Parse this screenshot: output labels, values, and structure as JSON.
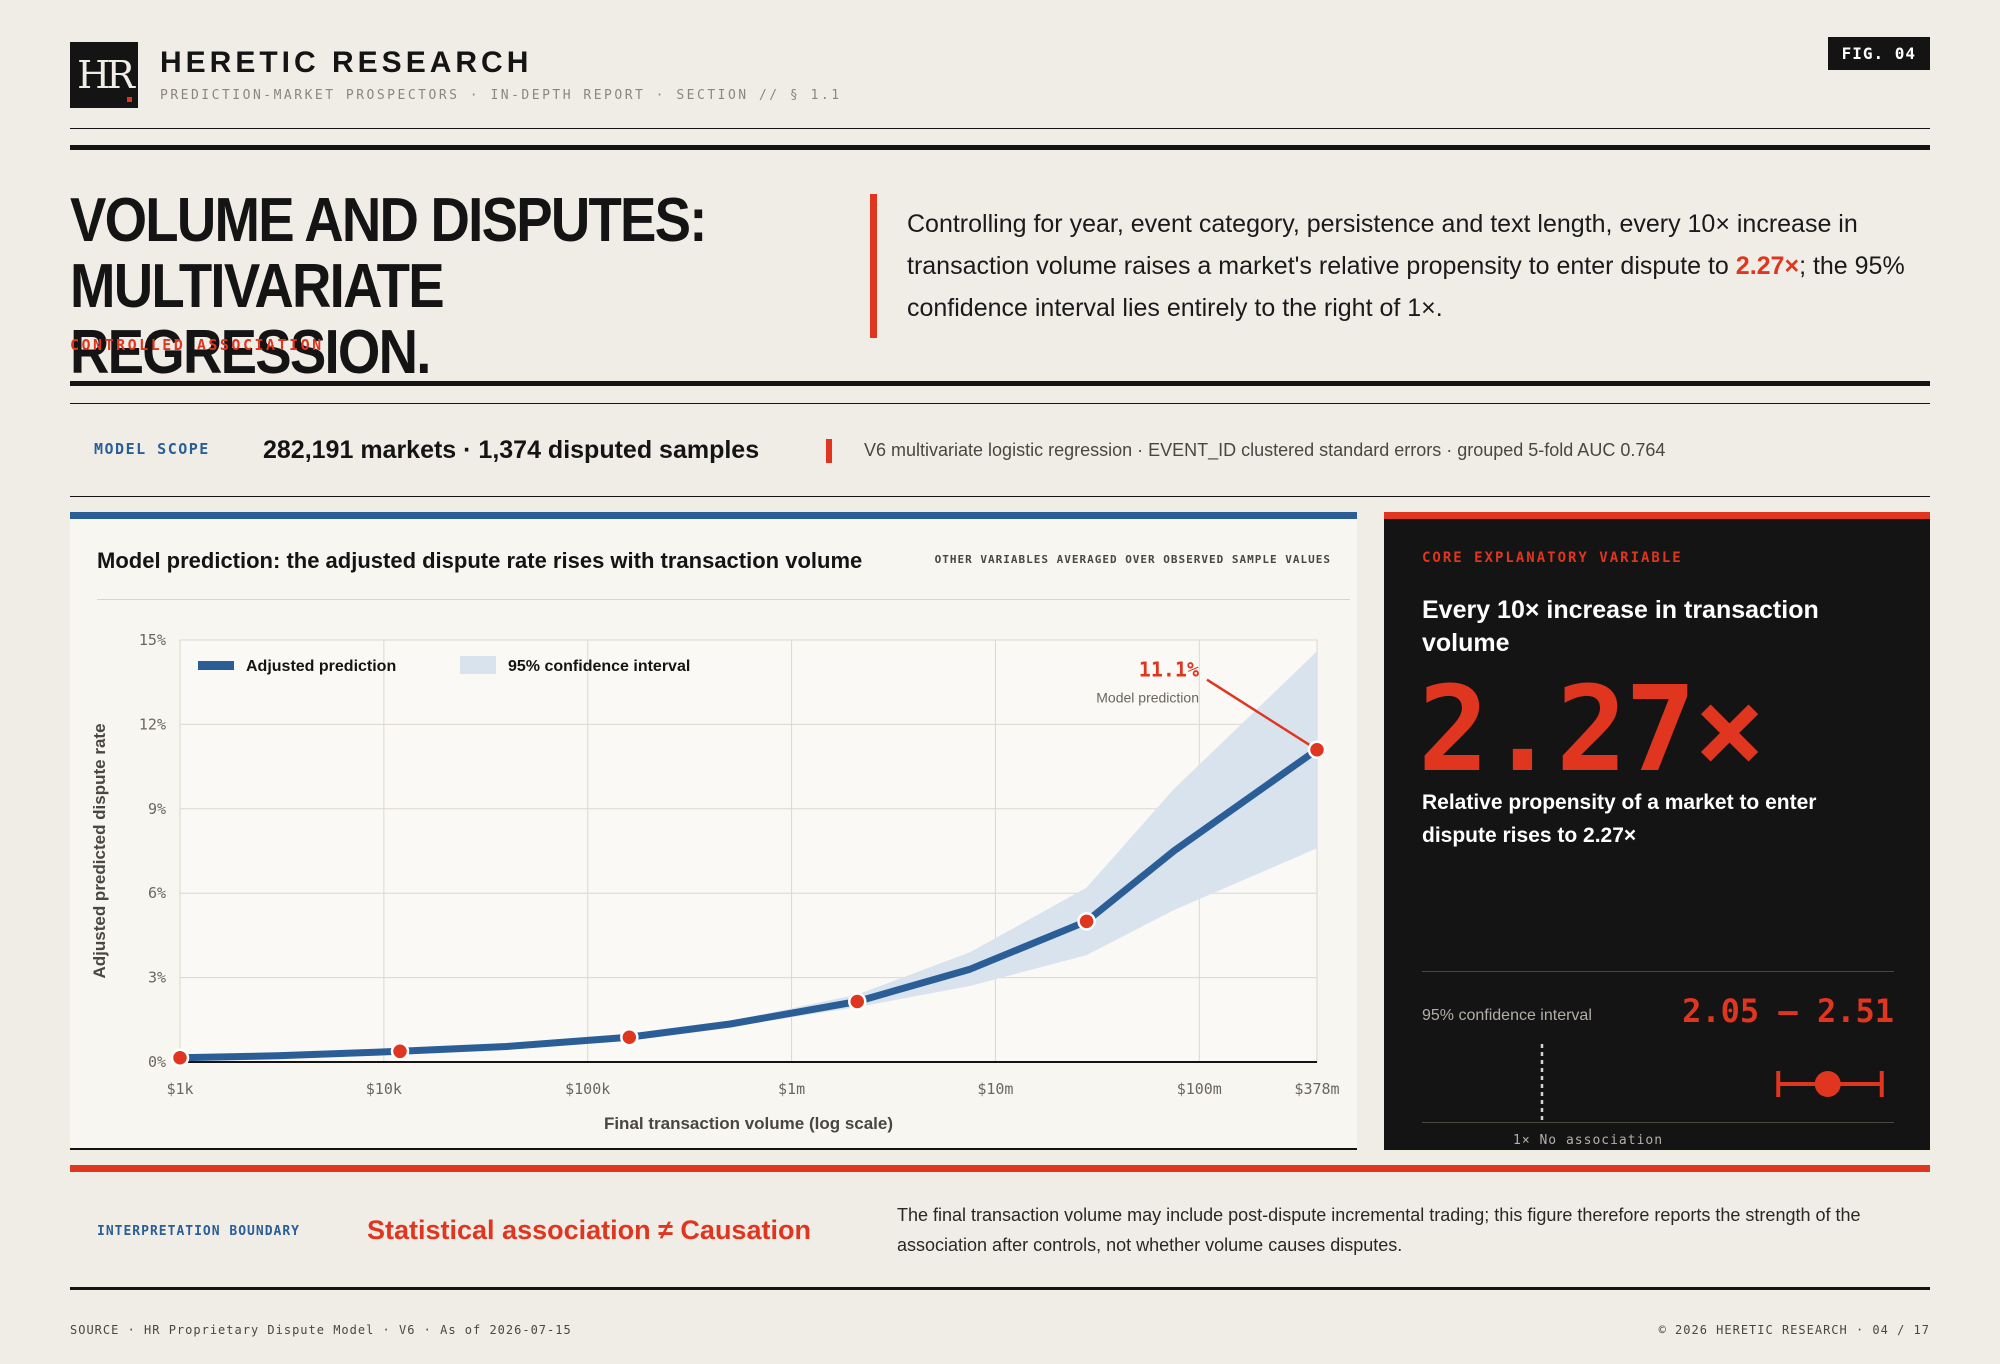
{
  "header": {
    "logo_text": "HR",
    "brand": "HERETIC RESEARCH",
    "subtitle": "PREDICTION-MARKET PROSPECTORS · IN-DEPTH REPORT · SECTION // § 1.1",
    "fig_label": "FIG. 04"
  },
  "title": {
    "line1": "VOLUME AND DISPUTES:",
    "line2": "MULTIVARIATE REGRESSION.",
    "kicker": "CONTROLLED ASSOCIATION"
  },
  "lead": {
    "before": "Controlling for year, event category, persistence and text length, every 10× increase in transaction volume raises a market's relative propensity to enter dispute to ",
    "highlight": "2.27×",
    "after": "; the 95% confidence interval lies entirely to the right of 1×."
  },
  "scope": {
    "label": "MODEL SCOPE",
    "value": "282,191 markets · 1,374 disputed samples",
    "description": "V6 multivariate logistic regression · EVENT_ID clustered standard errors · grouped 5-fold AUC 0.764"
  },
  "panel": {
    "title": "Model prediction: the adjusted dispute rate rises with transaction volume",
    "note": "OTHER VARIABLES AVERAGED OVER OBSERVED SAMPLE VALUES"
  },
  "chart_data": {
    "type": "line",
    "title": "Model prediction: the adjusted dispute rate rises with transaction volume",
    "xlabel": "Final transaction volume (log scale)",
    "ylabel": "Adjusted predicted dispute rate",
    "x_scale": "log",
    "xlim": [
      1000,
      378000000
    ],
    "ylim": [
      0,
      15
    ],
    "x_ticks": [
      {
        "value": 1000,
        "label": "$1k"
      },
      {
        "value": 10000,
        "label": "$10k"
      },
      {
        "value": 100000,
        "label": "$100k"
      },
      {
        "value": 1000000,
        "label": "$1m"
      },
      {
        "value": 10000000,
        "label": "$10m"
      },
      {
        "value": 100000000,
        "label": "$100m"
      },
      {
        "value": 378000000,
        "label": "$378m"
      }
    ],
    "y_ticks": [
      {
        "value": 0,
        "label": "0%"
      },
      {
        "value": 3,
        "label": "3%"
      },
      {
        "value": 6,
        "label": "6%"
      },
      {
        "value": 9,
        "label": "9%"
      },
      {
        "value": 12,
        "label": "12%"
      },
      {
        "value": 15,
        "label": "15%"
      }
    ],
    "grid": true,
    "legend": {
      "position": "top-left",
      "line_label": "Adjusted prediction",
      "band_label": "95% confidence interval"
    },
    "series": [
      {
        "name": "Adjusted prediction",
        "color": "#2b5e96",
        "x": [
          1000,
          3000,
          12000,
          40000,
          160000,
          500000,
          2100000,
          7500000,
          28000000,
          75000000,
          378000000
        ],
        "y": [
          0.15,
          0.22,
          0.38,
          0.55,
          0.88,
          1.35,
          2.15,
          3.3,
          5.0,
          7.5,
          11.1
        ]
      }
    ],
    "band": {
      "name": "95% confidence interval",
      "color": "#d8e3ee",
      "x": [
        1000,
        3000,
        12000,
        40000,
        160000,
        500000,
        2100000,
        7500000,
        28000000,
        75000000,
        378000000
      ],
      "lower": [
        0.1,
        0.18,
        0.33,
        0.5,
        0.8,
        1.25,
        1.95,
        2.7,
        3.8,
        5.4,
        7.6
      ],
      "upper": [
        0.2,
        0.27,
        0.43,
        0.6,
        0.95,
        1.45,
        2.4,
        3.9,
        6.2,
        9.7,
        14.6
      ]
    },
    "highlight_points": [
      1000,
      12000,
      160000,
      2100000,
      28000000,
      378000000
    ],
    "highlight_color": "#e0351f",
    "annotation": {
      "value": "11.1%",
      "text": "Model prediction",
      "x": 378000000,
      "y": 11.1
    }
  },
  "side": {
    "kicker": "CORE EXPLANATORY VARIABLE",
    "head": "Every 10× increase in transaction volume",
    "big_value": "2.27×",
    "description": "Relative propensity of a market to enter dispute rises to 2.27×",
    "ci_label": "95% confidence interval",
    "ci_value": "2.05 – 2.51",
    "ref_label": "1× No association",
    "estimate": 2.27,
    "ci_low": 2.05,
    "ci_high": 2.51,
    "ref_value": 1
  },
  "interpretation": {
    "label": "INTERPRETATION BOUNDARY",
    "head": "Statistical association ≠ Causation",
    "text": "The final transaction volume may include post-dispute incremental trading; this figure therefore reports the strength of the association after controls, not whether volume causes disputes."
  },
  "footer": {
    "left": "SOURCE · HR Proprietary Dispute Model · V6 · As of 2026-07-15",
    "right": "© 2026 HERETIC RESEARCH · 04 / 17"
  }
}
